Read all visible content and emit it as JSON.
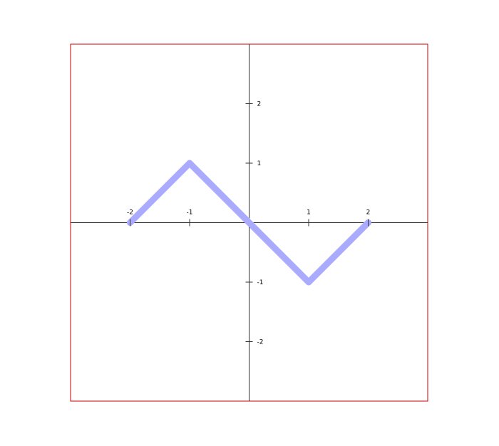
{
  "chart_data": {
    "type": "line",
    "title": "",
    "xlabel": "",
    "ylabel": "",
    "xlim": [
      -3,
      3
    ],
    "ylim": [
      -3,
      3
    ],
    "grid": false,
    "x_ticks": [
      -2,
      -1,
      1,
      2
    ],
    "y_ticks": [
      2,
      1,
      -1,
      -2
    ],
    "x_tick_labels": [
      "-2",
      "-1",
      "1",
      "2"
    ],
    "y_tick_labels": [
      "2",
      "1",
      "-1",
      "-2"
    ],
    "series": [
      {
        "x": [
          -2,
          -1,
          1,
          2
        ],
        "y": [
          0,
          1,
          -1,
          0
        ],
        "color": "#aaaaff"
      }
    ],
    "colors": {
      "frame": "#cc0000",
      "axis": "#333333",
      "line": "#aaaaff"
    }
  }
}
